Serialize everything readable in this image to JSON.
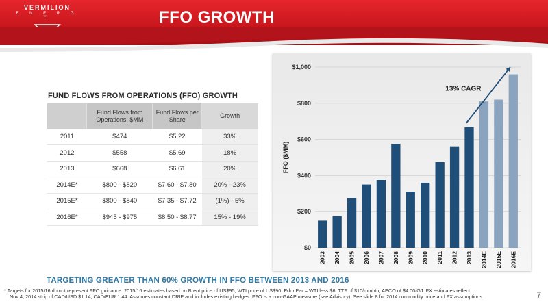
{
  "header": {
    "logo_name": "VERMILION",
    "logo_sub": "E N E R G Y",
    "title": "FFO GROWTH"
  },
  "table": {
    "title": "FUND FLOWS FROM OPERATIONS (FFO) GROWTH",
    "headers": [
      "",
      "Fund Flows from Operations, $MM",
      "Fund Flows per Share",
      "Growth"
    ],
    "rows": [
      [
        "2011",
        "$474",
        "$5.22",
        "33%"
      ],
      [
        "2012",
        "$558",
        "$5.69",
        "18%"
      ],
      [
        "2013",
        "$668",
        "$6.61",
        "20%"
      ],
      [
        "2014E*",
        "$800 - $820",
        "$7.60 - $7.80",
        "20% - 23%"
      ],
      [
        "2015E*",
        "$800 - $840",
        "$7.35 - $7.72",
        "(1%) - 5%"
      ],
      [
        "2016E*",
        "$945 - $975",
        "$8.50 - $8.77",
        "15% - 19%"
      ]
    ]
  },
  "chart_data": {
    "type": "bar",
    "categories": [
      "2003",
      "2004",
      "2005",
      "2006",
      "2007",
      "2008",
      "2009",
      "2010",
      "2011",
      "2012",
      "2013",
      "2014E",
      "2015E",
      "2016E"
    ],
    "values": [
      150,
      175,
      275,
      350,
      375,
      575,
      310,
      360,
      474,
      558,
      668,
      810,
      820,
      960
    ],
    "estimate_from_index": 11,
    "ylabel": "FFO ($MM)",
    "ylim": [
      0,
      1000
    ],
    "yticks": [
      0,
      200,
      400,
      600,
      800,
      1000
    ],
    "ytick_labels": [
      "$0",
      "$200",
      "$400",
      "$600",
      "$800",
      "$1,000"
    ],
    "annotation": "13% CAGR",
    "grid": true,
    "colors": {
      "actual": "#1f4e79",
      "estimate": "#8aa3bf"
    }
  },
  "bottom_headline": "TARGETING GREATER THAN 60% GROWTH IN FFO BETWEEN 2013 AND 2016",
  "footnote_1": "* Targets for 2015/16 do not represent FFO guidance.  2015/16 estimates based on Brent price of US$95; WTI price of US$90; Edm Par = WTI less $6; TTF of $10/mmbtu; AECO of $4.00/GJ. FX estimates reflect",
  "footnote_2": "Nov 4, 2014 strip of CAD/USD $1.14; CAD/EUR 1.44.  Assumes constant DRIP and includes existing hedges. FFO is a non-GAAP measure (see Advisory). See slide 8 for 2014 commodity price and FX assumptions.",
  "page_number": "7",
  "colors": {
    "brand_red": "#d21f26",
    "headline_blue": "#2f7aa6"
  }
}
